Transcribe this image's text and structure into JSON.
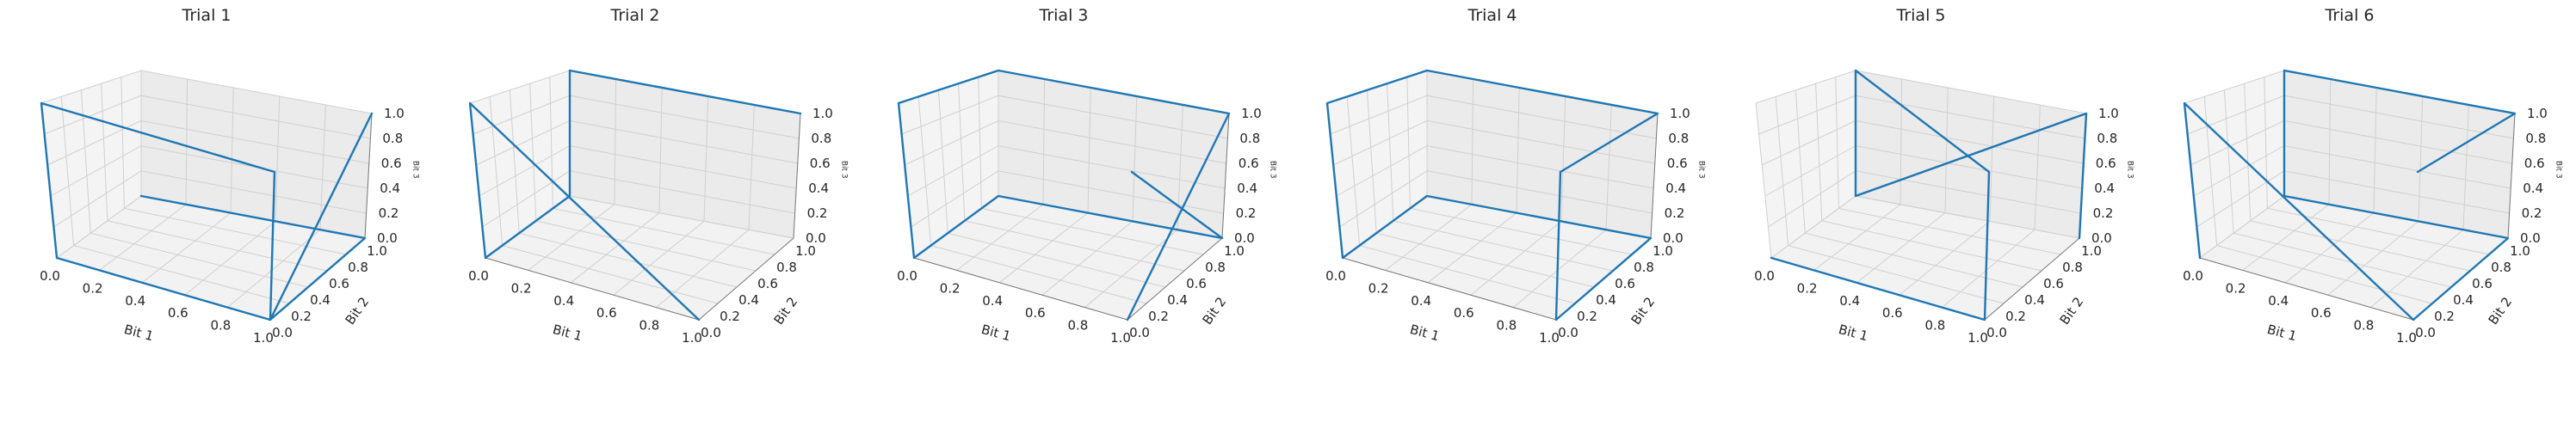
{
  "chart_data": [
    {
      "type": "line3d",
      "title": "Trial 1",
      "xlabel": "Bit 1",
      "ylabel": "Bit 2",
      "zlabel": "Bit 3",
      "xlim": [
        0,
        1
      ],
      "ylim": [
        0,
        1
      ],
      "zlim": [
        0,
        1
      ],
      "xticks": [
        "0.0",
        "0.2",
        "0.4",
        "0.6",
        "0.8",
        "1.0"
      ],
      "yticks": [
        "0.0",
        "0.2",
        "0.4",
        "0.6",
        "0.8",
        "1.0"
      ],
      "zticks": [
        "0.0",
        "0.2",
        "0.4",
        "0.6",
        "0.8",
        "1.0"
      ],
      "grid": true,
      "color": "#1f77b4",
      "series": [
        {
          "x": [
            0,
            1,
            1,
            1,
            0,
            0,
            1,
            1
          ],
          "y": [
            1,
            1,
            0,
            0,
            0,
            0,
            0,
            1
          ],
          "z": [
            0,
            0,
            0,
            1,
            1,
            0,
            0,
            1
          ]
        }
      ]
    },
    {
      "type": "line3d",
      "title": "Trial 2",
      "xlabel": "Bit 1",
      "ylabel": "Bit 2",
      "zlabel": "Bit 3",
      "xlim": [
        0,
        1
      ],
      "ylim": [
        0,
        1
      ],
      "zlim": [
        0,
        1
      ],
      "xticks": [
        "0.0",
        "0.2",
        "0.4",
        "0.6",
        "0.8",
        "1.0"
      ],
      "yticks": [
        "0.0",
        "0.2",
        "0.4",
        "0.6",
        "0.8",
        "1.0"
      ],
      "zticks": [
        "0.0",
        "0.2",
        "0.4",
        "0.6",
        "0.8",
        "1.0"
      ],
      "grid": true,
      "color": "#1f77b4",
      "series": [
        {
          "x": [
            1,
            0,
            0,
            0,
            0,
            1
          ],
          "y": [
            1,
            1,
            1,
            0,
            0,
            0
          ],
          "z": [
            1,
            1,
            0,
            0,
            1,
            0
          ]
        }
      ]
    },
    {
      "type": "line3d",
      "title": "Trial 3",
      "xlabel": "Bit 1",
      "ylabel": "Bit 2",
      "zlabel": "Bit 3",
      "xlim": [
        0,
        1
      ],
      "ylim": [
        0,
        1
      ],
      "zlim": [
        0,
        1
      ],
      "xticks": [
        "0.0",
        "0.2",
        "0.4",
        "0.6",
        "0.8",
        "1.0"
      ],
      "yticks": [
        "0.0",
        "0.2",
        "0.4",
        "0.6",
        "0.8",
        "1.0"
      ],
      "zticks": [
        "0.0",
        "0.2",
        "0.4",
        "0.6",
        "0.8",
        "1.0"
      ],
      "grid": true,
      "color": "#1f77b4",
      "series": [
        {
          "x": [
            1,
            1,
            0,
            0,
            0,
            0,
            1,
            1
          ],
          "y": [
            0,
            1,
            1,
            0,
            0,
            1,
            1,
            0
          ],
          "z": [
            0,
            1,
            1,
            1,
            0,
            0,
            0,
            1
          ]
        }
      ]
    },
    {
      "type": "line3d",
      "title": "Trial 4",
      "xlabel": "Bit 1",
      "ylabel": "Bit 2",
      "zlabel": "Bit 3",
      "xlim": [
        0,
        1
      ],
      "ylim": [
        0,
        1
      ],
      "zlim": [
        0,
        1
      ],
      "xticks": [
        "0.0",
        "0.2",
        "0.4",
        "0.6",
        "0.8",
        "1.0"
      ],
      "yticks": [
        "0.0",
        "0.2",
        "0.4",
        "0.6",
        "0.8",
        "1.0"
      ],
      "zticks": [
        "0.0",
        "0.2",
        "0.4",
        "0.6",
        "0.8",
        "1.0"
      ],
      "grid": true,
      "color": "#1f77b4",
      "series": [
        {
          "x": [
            1,
            1,
            0,
            0,
            0,
            0,
            1,
            1,
            1
          ],
          "y": [
            0,
            1,
            1,
            0,
            0,
            1,
            1,
            0,
            0
          ],
          "z": [
            1,
            1,
            1,
            1,
            0,
            0,
            0,
            0,
            1
          ]
        }
      ]
    },
    {
      "type": "line3d",
      "title": "Trial 5",
      "xlabel": "Bit 1",
      "ylabel": "Bit 2",
      "zlabel": "Bit 3",
      "xlim": [
        0,
        1
      ],
      "ylim": [
        0,
        1
      ],
      "zlim": [
        0,
        1
      ],
      "xticks": [
        "0.0",
        "0.2",
        "0.4",
        "0.6",
        "0.8",
        "1.0"
      ],
      "yticks": [
        "0.0",
        "0.2",
        "0.4",
        "0.6",
        "0.8",
        "1.0"
      ],
      "zticks": [
        "0.0",
        "0.2",
        "0.4",
        "0.6",
        "0.8",
        "1.0"
      ],
      "grid": true,
      "color": "#1f77b4",
      "series": [
        {
          "x": [
            0,
            1,
            1,
            0,
            0,
            1,
            1
          ],
          "y": [
            0,
            0,
            0,
            1,
            1,
            1,
            1
          ],
          "z": [
            0,
            0,
            1,
            1,
            0,
            1,
            0
          ]
        }
      ]
    },
    {
      "type": "line3d",
      "title": "Trial 6",
      "xlabel": "Bit 1",
      "ylabel": "Bit 2",
      "zlabel": "Bit 3",
      "xlim": [
        0,
        1
      ],
      "ylim": [
        0,
        1
      ],
      "zlim": [
        0,
        1
      ],
      "xticks": [
        "0.0",
        "0.2",
        "0.4",
        "0.6",
        "0.8",
        "1.0"
      ],
      "yticks": [
        "0.0",
        "0.2",
        "0.4",
        "0.6",
        "0.8",
        "1.0"
      ],
      "zticks": [
        "0.0",
        "0.2",
        "0.4",
        "0.6",
        "0.8",
        "1.0"
      ],
      "grid": true,
      "color": "#1f77b4",
      "series": [
        {
          "x": [
            1,
            1,
            0,
            0,
            1,
            1,
            0,
            0
          ],
          "y": [
            0,
            1,
            1,
            1,
            1,
            0,
            0,
            0
          ],
          "z": [
            1,
            1,
            1,
            0,
            0,
            0,
            1,
            0
          ]
        }
      ]
    }
  ]
}
